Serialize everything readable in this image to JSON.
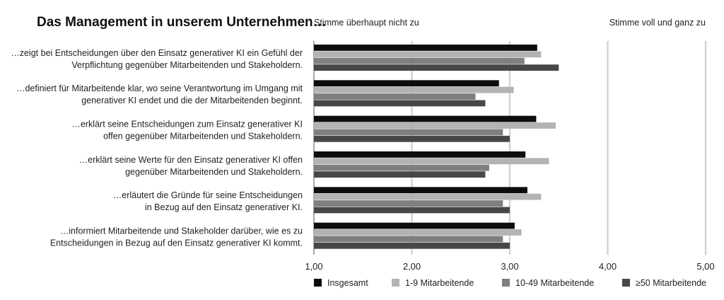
{
  "chart_data": {
    "type": "bar",
    "orientation": "horizontal",
    "title": "Das Management in unserem Unternehmen…",
    "scale_left_label": "Stimme überhaupt nicht zu",
    "scale_right_label": "Stimme voll und ganz zu",
    "xlim": [
      1,
      5
    ],
    "xticks": [
      "1,00",
      "2,00",
      "3,00",
      "4,00",
      "5,00"
    ],
    "grid": "vertical",
    "legend_position": "bottom",
    "categories": [
      [
        "…zeigt bei Entscheidungen über den Einsatz generativer KI ein Gefühl der",
        "Verpflichtung gegenüber Mitarbeitenden und Stakeholdern."
      ],
      [
        "…definiert für Mitarbeitende klar, wo seine Verantwortung im Umgang mit",
        "generativer KI endet und die der Mitarbeitenden beginnt."
      ],
      [
        "…erklärt seine Entscheidungen zum Einsatz generativer KI",
        "offen gegenüber Mitarbeitenden und Stakeholdern."
      ],
      [
        "…erklärt seine Werte für den Einsatz generativer KI offen",
        "gegenüber Mitarbeitenden und Stakeholdern."
      ],
      [
        "…erläutert die Gründe für seine Entscheidungen",
        "in Bezug auf den Einsatz generativer KI."
      ],
      [
        "…informiert Mitarbeitende und Stakeholder darüber, wie es zu",
        "Entscheidungen in Bezug auf den Einsatz generativer KI kommt."
      ]
    ],
    "series": [
      {
        "name": "Insgesamt",
        "color": "#0d0d0d",
        "values": [
          3.28,
          2.89,
          3.27,
          3.16,
          3.18,
          3.05
        ]
      },
      {
        "name": "1-9 Mitarbeitende",
        "color": "#b3b3b3",
        "values": [
          3.32,
          3.04,
          3.47,
          3.4,
          3.32,
          3.12
        ]
      },
      {
        "name": "10-49 Mitarbeitende",
        "color": "#7f7f7f",
        "values": [
          3.15,
          2.65,
          2.93,
          2.79,
          2.93,
          2.93
        ]
      },
      {
        "name": "≥50 Mitarbeitende",
        "color": "#474747",
        "values": [
          3.5,
          2.75,
          3.0,
          2.75,
          3.0,
          3.0
        ]
      }
    ]
  }
}
